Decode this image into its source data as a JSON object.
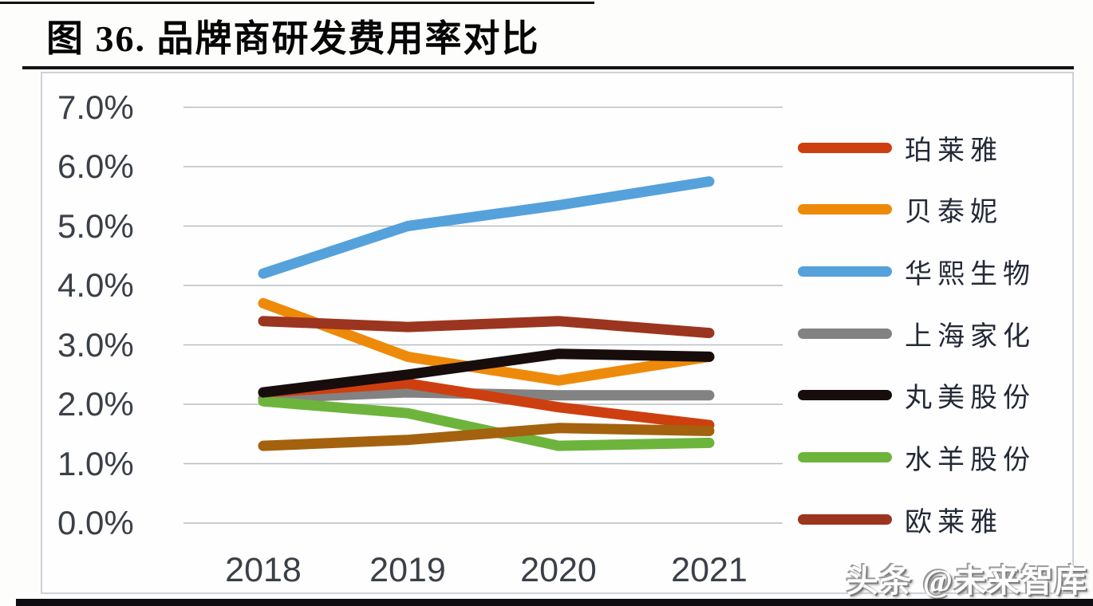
{
  "page": {
    "title": "图 36. 品牌商研发费用率对比",
    "watermark": "头条 @未来智库"
  },
  "chart_data": {
    "type": "line",
    "title": "图 36. 品牌商研发费用率对比",
    "categories": [
      "2018",
      "2019",
      "2020",
      "2021"
    ],
    "xlabel": "",
    "ylabel": "",
    "unit": "percent",
    "ylim": [
      0.0,
      7.0
    ],
    "grid": true,
    "legend_position": "right",
    "y_ticks": [
      {
        "label": "7.0%",
        "value": 7.0
      },
      {
        "label": "6.0%",
        "value": 6.0
      },
      {
        "label": "5.0%",
        "value": 5.0
      },
      {
        "label": "4.0%",
        "value": 4.0
      },
      {
        "label": "3.0%",
        "value": 3.0
      },
      {
        "label": "2.0%",
        "value": 2.0
      },
      {
        "label": "1.0%",
        "value": 1.0
      },
      {
        "label": "0.0%",
        "value": 0.0
      }
    ],
    "series": [
      {
        "name": "珀莱雅",
        "color": "#CE3F10",
        "legend_visible": true,
        "values": [
          2.2,
          2.35,
          1.95,
          1.65
        ]
      },
      {
        "name": "贝泰妮",
        "color": "#EE8A0A",
        "legend_visible": true,
        "values": [
          3.7,
          2.8,
          2.4,
          2.8
        ]
      },
      {
        "name": "华熙生物",
        "color": "#55A1DB",
        "legend_visible": true,
        "values": [
          4.2,
          5.0,
          5.35,
          5.75
        ]
      },
      {
        "name": "上海家化",
        "color": "#828282",
        "legend_visible": true,
        "values": [
          2.1,
          2.2,
          2.15,
          2.15
        ]
      },
      {
        "name": "丸美股份",
        "color": "#170D0D",
        "legend_visible": true,
        "values": [
          2.2,
          2.5,
          2.85,
          2.8
        ]
      },
      {
        "name": "水羊股份",
        "color": "#6DB43D",
        "legend_visible": true,
        "values": [
          2.05,
          1.85,
          1.3,
          1.35
        ]
      },
      {
        "name": "欧莱雅",
        "color": "#9B351F",
        "legend_visible": true,
        "values": [
          3.4,
          3.3,
          3.4,
          3.2
        ]
      },
      {
        "name": "",
        "color": "#A4620E",
        "legend_visible": false,
        "values": [
          1.3,
          1.4,
          1.6,
          1.55
        ]
      }
    ],
    "draw_order": [
      3,
      5,
      1,
      0,
      7,
      6,
      4,
      2
    ]
  }
}
